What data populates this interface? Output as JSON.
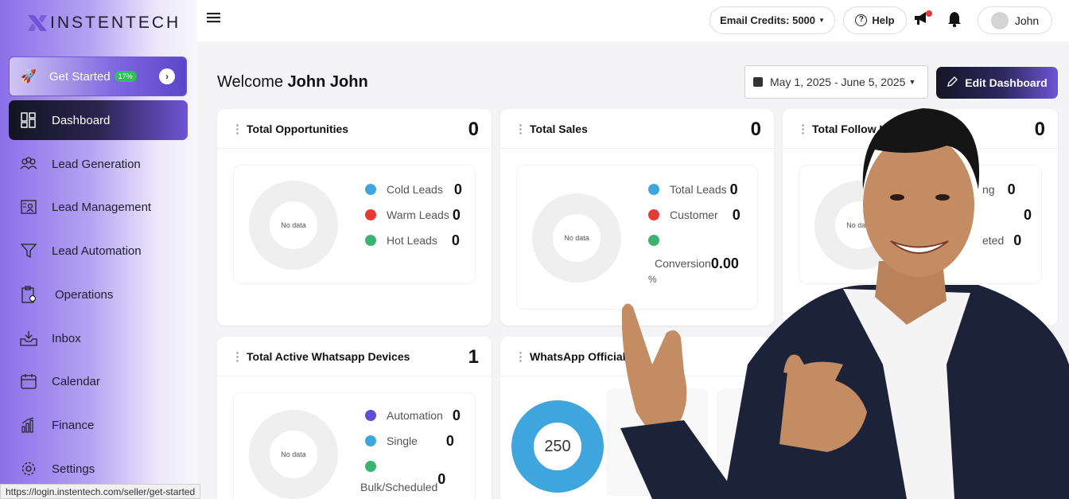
{
  "brand": {
    "name": "INSTENTECH"
  },
  "get_started": {
    "label": "Get Started",
    "progress": "17%"
  },
  "sidebar": {
    "items": [
      {
        "label": "Dashboard",
        "icon": "dashboard-icon"
      },
      {
        "label": "Lead Generation",
        "icon": "people-icon"
      },
      {
        "label": "Lead Management",
        "icon": "id-card-icon"
      },
      {
        "label": "Lead Automation",
        "icon": "funnel-icon"
      },
      {
        "label": "Operations",
        "icon": "clipboard-icon"
      },
      {
        "label": "Inbox",
        "icon": "inbox-icon"
      },
      {
        "label": "Calendar",
        "icon": "calendar-icon"
      },
      {
        "label": "Finance",
        "icon": "chart-bars-icon"
      },
      {
        "label": "Settings",
        "icon": "gear-icon"
      }
    ]
  },
  "header": {
    "email_credits": "Email Credits: 5000",
    "help": "Help",
    "user_name": "John"
  },
  "main": {
    "welcome_prefix": "Welcome",
    "welcome_name": "John John",
    "date_range": "May 1, 2025 - June 5, 2025",
    "edit_dashboard": "Edit Dashboard"
  },
  "cards": {
    "opportunities": {
      "title": "Total Opportunities",
      "count": "0",
      "no_data": "No data",
      "legend": [
        {
          "label": "Cold Leads",
          "value": "0",
          "color": "#3ea6dc"
        },
        {
          "label": "Warm Leads",
          "value": "0",
          "color": "#e53935"
        },
        {
          "label": "Hot Leads",
          "value": "0",
          "color": "#3cb371"
        }
      ]
    },
    "sales": {
      "title": "Total Sales",
      "count": "0",
      "no_data": "No data",
      "legend": [
        {
          "label": "Total Leads",
          "value": "0",
          "color": "#3ea6dc"
        },
        {
          "label": "Customer",
          "value": "0",
          "color": "#e53935"
        },
        {
          "label": "Conversion",
          "value": "0.00",
          "unit": "%",
          "color": "#3cb371"
        }
      ]
    },
    "followups": {
      "title": "Total Follow Ups",
      "count": "0",
      "no_data": "No data",
      "legend": [
        {
          "label": "ng",
          "value": "0"
        },
        {
          "label": "",
          "value": "0"
        },
        {
          "label": "eted",
          "value": "0"
        }
      ]
    },
    "whatsapp_devices": {
      "title": "Total Active Whatsapp Devices",
      "count": "1",
      "no_data": "No data",
      "legend": [
        {
          "label": "Automation",
          "value": "0",
          "color": "#5b4fd6"
        },
        {
          "label": "Single",
          "value": "0",
          "color": "#3ea6dc"
        },
        {
          "label": "Bulk/Scheduled",
          "value": "0",
          "color": "#3cb371"
        }
      ]
    },
    "whatsapp_official": {
      "title": "WhatsApp Official",
      "donut_value": "250",
      "color": "#3ea6dc"
    }
  },
  "status_bar": {
    "url": "https://login.instentech.com/seller/get-started"
  }
}
